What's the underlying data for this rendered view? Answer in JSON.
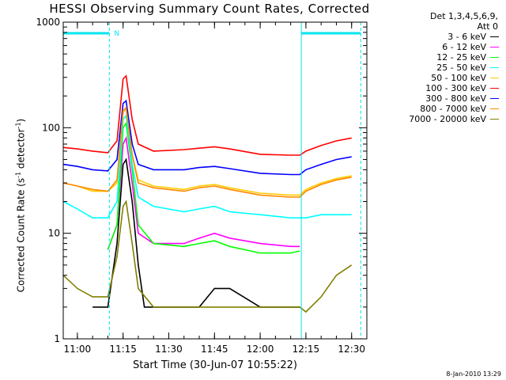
{
  "chart_data": {
    "type": "line",
    "title": "HESSI Observing Summary Count Rates, Corrected",
    "xlabel": "Start Time (30-Jun-07 10:55:22)",
    "ylabel_text": "Corrected Count Rate (s",
    "ylabel_sup1": "-1",
    "ylabel_mid": " detector",
    "ylabel_sup2": "-1",
    "ylabel_end": ")",
    "yscale": "log",
    "ylim": [
      1,
      1000
    ],
    "xlim": [
      "10:55:22",
      "12:35:00"
    ],
    "x_ticks": [
      "11:00",
      "11:15",
      "11:30",
      "11:45",
      "12:00",
      "12:15",
      "12:30"
    ],
    "y_ticks": [
      "1",
      "10",
      "100",
      "1000"
    ],
    "grid": false,
    "legend": {
      "header1": "Det 1,3,4,5,6,9,",
      "header2": "Att 0",
      "placement": "right"
    },
    "series": [
      {
        "name": "3 - 6 keV",
        "color": "#000000",
        "points": [
          [
            "11:05",
            2
          ],
          [
            "11:10",
            2
          ],
          [
            "11:13",
            8
          ],
          [
            "11:15",
            45
          ],
          [
            "11:16",
            50
          ],
          [
            "11:18",
            20
          ],
          [
            "11:20",
            5
          ],
          [
            "11:22",
            2
          ],
          [
            "11:30",
            2
          ],
          [
            "11:40",
            2
          ],
          [
            "11:45",
            3
          ],
          [
            "11:50",
            3
          ],
          [
            "12:00",
            2
          ],
          [
            "12:10",
            2
          ],
          [
            "12:13",
            2
          ]
        ]
      },
      {
        "name": "6 - 12 keV",
        "color": "#ff00ff",
        "points": [
          [
            "11:10",
            7
          ],
          [
            "11:13",
            12
          ],
          [
            "11:15",
            70
          ],
          [
            "11:16",
            80
          ],
          [
            "11:18",
            30
          ],
          [
            "11:20",
            10
          ],
          [
            "11:25",
            8
          ],
          [
            "11:35",
            8
          ],
          [
            "11:40",
            9
          ],
          [
            "11:45",
            10
          ],
          [
            "11:50",
            9
          ],
          [
            "12:00",
            8
          ],
          [
            "12:10",
            7.5
          ],
          [
            "12:13",
            7.5
          ]
        ]
      },
      {
        "name": "12 - 25 keV",
        "color": "#00ff00",
        "points": [
          [
            "11:10",
            7
          ],
          [
            "11:13",
            12
          ],
          [
            "11:15",
            100
          ],
          [
            "11:16",
            110
          ],
          [
            "11:18",
            40
          ],
          [
            "11:20",
            12
          ],
          [
            "11:25",
            8
          ],
          [
            "11:35",
            7.5
          ],
          [
            "11:40",
            8
          ],
          [
            "11:45",
            8.5
          ],
          [
            "11:50",
            7.5
          ],
          [
            "12:00",
            6.5
          ],
          [
            "12:10",
            6.5
          ],
          [
            "12:13",
            6.8
          ]
        ]
      },
      {
        "name": "25 - 50 keV",
        "color": "#00ffff",
        "points": [
          [
            "10:55:22",
            20
          ],
          [
            "11:00",
            17
          ],
          [
            "11:05",
            14
          ],
          [
            "11:10",
            14
          ],
          [
            "11:13",
            20
          ],
          [
            "11:15",
            120
          ],
          [
            "11:16",
            130
          ],
          [
            "11:18",
            45
          ],
          [
            "11:20",
            22
          ],
          [
            "11:25",
            18
          ],
          [
            "11:35",
            16
          ],
          [
            "11:40",
            17
          ],
          [
            "11:45",
            18
          ],
          [
            "11:50",
            16
          ],
          [
            "12:00",
            15
          ],
          [
            "12:10",
            14
          ],
          [
            "12:13",
            14
          ],
          [
            "12:15",
            14
          ],
          [
            "12:20",
            15
          ],
          [
            "12:25",
            15
          ],
          [
            "12:30",
            15
          ]
        ]
      },
      {
        "name": "50 - 100 keV",
        "color": "#ffcc00",
        "points": [
          [
            "10:55:22",
            30
          ],
          [
            "11:00",
            28
          ],
          [
            "11:05",
            25
          ],
          [
            "11:10",
            25
          ],
          [
            "11:13",
            30
          ],
          [
            "11:15",
            140
          ],
          [
            "11:16",
            150
          ],
          [
            "11:18",
            55
          ],
          [
            "11:20",
            32
          ],
          [
            "11:25",
            28
          ],
          [
            "11:35",
            26
          ],
          [
            "11:40",
            28
          ],
          [
            "11:45",
            29
          ],
          [
            "11:50",
            27
          ],
          [
            "12:00",
            24
          ],
          [
            "12:10",
            23
          ],
          [
            "12:13",
            23
          ],
          [
            "12:15",
            26
          ],
          [
            "12:20",
            30
          ],
          [
            "12:25",
            33
          ],
          [
            "12:30",
            35
          ]
        ]
      },
      {
        "name": "100 - 300 keV",
        "color": "#ff0000",
        "points": [
          [
            "10:55:22",
            65
          ],
          [
            "11:00",
            63
          ],
          [
            "11:05",
            60
          ],
          [
            "11:10",
            58
          ],
          [
            "11:13",
            75
          ],
          [
            "11:15",
            290
          ],
          [
            "11:16",
            310
          ],
          [
            "11:18",
            120
          ],
          [
            "11:20",
            70
          ],
          [
            "11:25",
            60
          ],
          [
            "11:35",
            62
          ],
          [
            "11:40",
            64
          ],
          [
            "11:45",
            66
          ],
          [
            "11:50",
            63
          ],
          [
            "12:00",
            56
          ],
          [
            "12:10",
            55
          ],
          [
            "12:13",
            55
          ],
          [
            "12:15",
            60
          ],
          [
            "12:20",
            68
          ],
          [
            "12:25",
            75
          ],
          [
            "12:30",
            80
          ]
        ]
      },
      {
        "name": "300 - 800 keV",
        "color": "#0000ff",
        "points": [
          [
            "10:55:22",
            45
          ],
          [
            "11:00",
            43
          ],
          [
            "11:05",
            40
          ],
          [
            "11:10",
            39
          ],
          [
            "11:13",
            50
          ],
          [
            "11:15",
            170
          ],
          [
            "11:16",
            180
          ],
          [
            "11:18",
            70
          ],
          [
            "11:20",
            45
          ],
          [
            "11:25",
            40
          ],
          [
            "11:35",
            40
          ],
          [
            "11:40",
            42
          ],
          [
            "11:45",
            43
          ],
          [
            "11:50",
            41
          ],
          [
            "12:00",
            37
          ],
          [
            "12:10",
            36
          ],
          [
            "12:13",
            36
          ],
          [
            "12:15",
            40
          ],
          [
            "12:20",
            45
          ],
          [
            "12:25",
            50
          ],
          [
            "12:30",
            53
          ]
        ]
      },
      {
        "name": "800 - 7000 keV",
        "color": "#ff8800",
        "points": [
          [
            "10:55:22",
            30
          ],
          [
            "11:00",
            28
          ],
          [
            "11:05",
            26
          ],
          [
            "11:10",
            25
          ],
          [
            "11:13",
            32
          ],
          [
            "11:15",
            145
          ],
          [
            "11:16",
            155
          ],
          [
            "11:18",
            55
          ],
          [
            "11:20",
            30
          ],
          [
            "11:25",
            27
          ],
          [
            "11:35",
            25
          ],
          [
            "11:40",
            27
          ],
          [
            "11:45",
            28
          ],
          [
            "11:50",
            26
          ],
          [
            "12:00",
            23
          ],
          [
            "12:10",
            22
          ],
          [
            "12:13",
            22
          ],
          [
            "12:15",
            25
          ],
          [
            "12:20",
            29
          ],
          [
            "12:25",
            32
          ],
          [
            "12:30",
            34
          ]
        ]
      },
      {
        "name": "7000 - 20000 keV",
        "color": "#808000",
        "points": [
          [
            "10:55:22",
            4
          ],
          [
            "11:00",
            3
          ],
          [
            "11:05",
            2.5
          ],
          [
            "11:10",
            2.5
          ],
          [
            "11:13",
            6
          ],
          [
            "11:15",
            18
          ],
          [
            "11:16",
            20
          ],
          [
            "11:18",
            8
          ],
          [
            "11:20",
            3
          ],
          [
            "11:25",
            2
          ],
          [
            "11:35",
            2
          ],
          [
            "11:45",
            2
          ],
          [
            "11:55",
            2
          ],
          [
            "12:05",
            2
          ],
          [
            "12:13",
            2
          ],
          [
            "12:15",
            1.8
          ],
          [
            "12:20",
            2.5
          ],
          [
            "12:25",
            4
          ],
          [
            "12:30",
            5
          ]
        ]
      }
    ],
    "annotations": {
      "night_label": "N",
      "cyan_markers": [
        "10:55:22",
        "11:10:30",
        "12:13:30",
        "12:33:00"
      ]
    }
  },
  "stamp": "8-Jan-2010 13:29"
}
